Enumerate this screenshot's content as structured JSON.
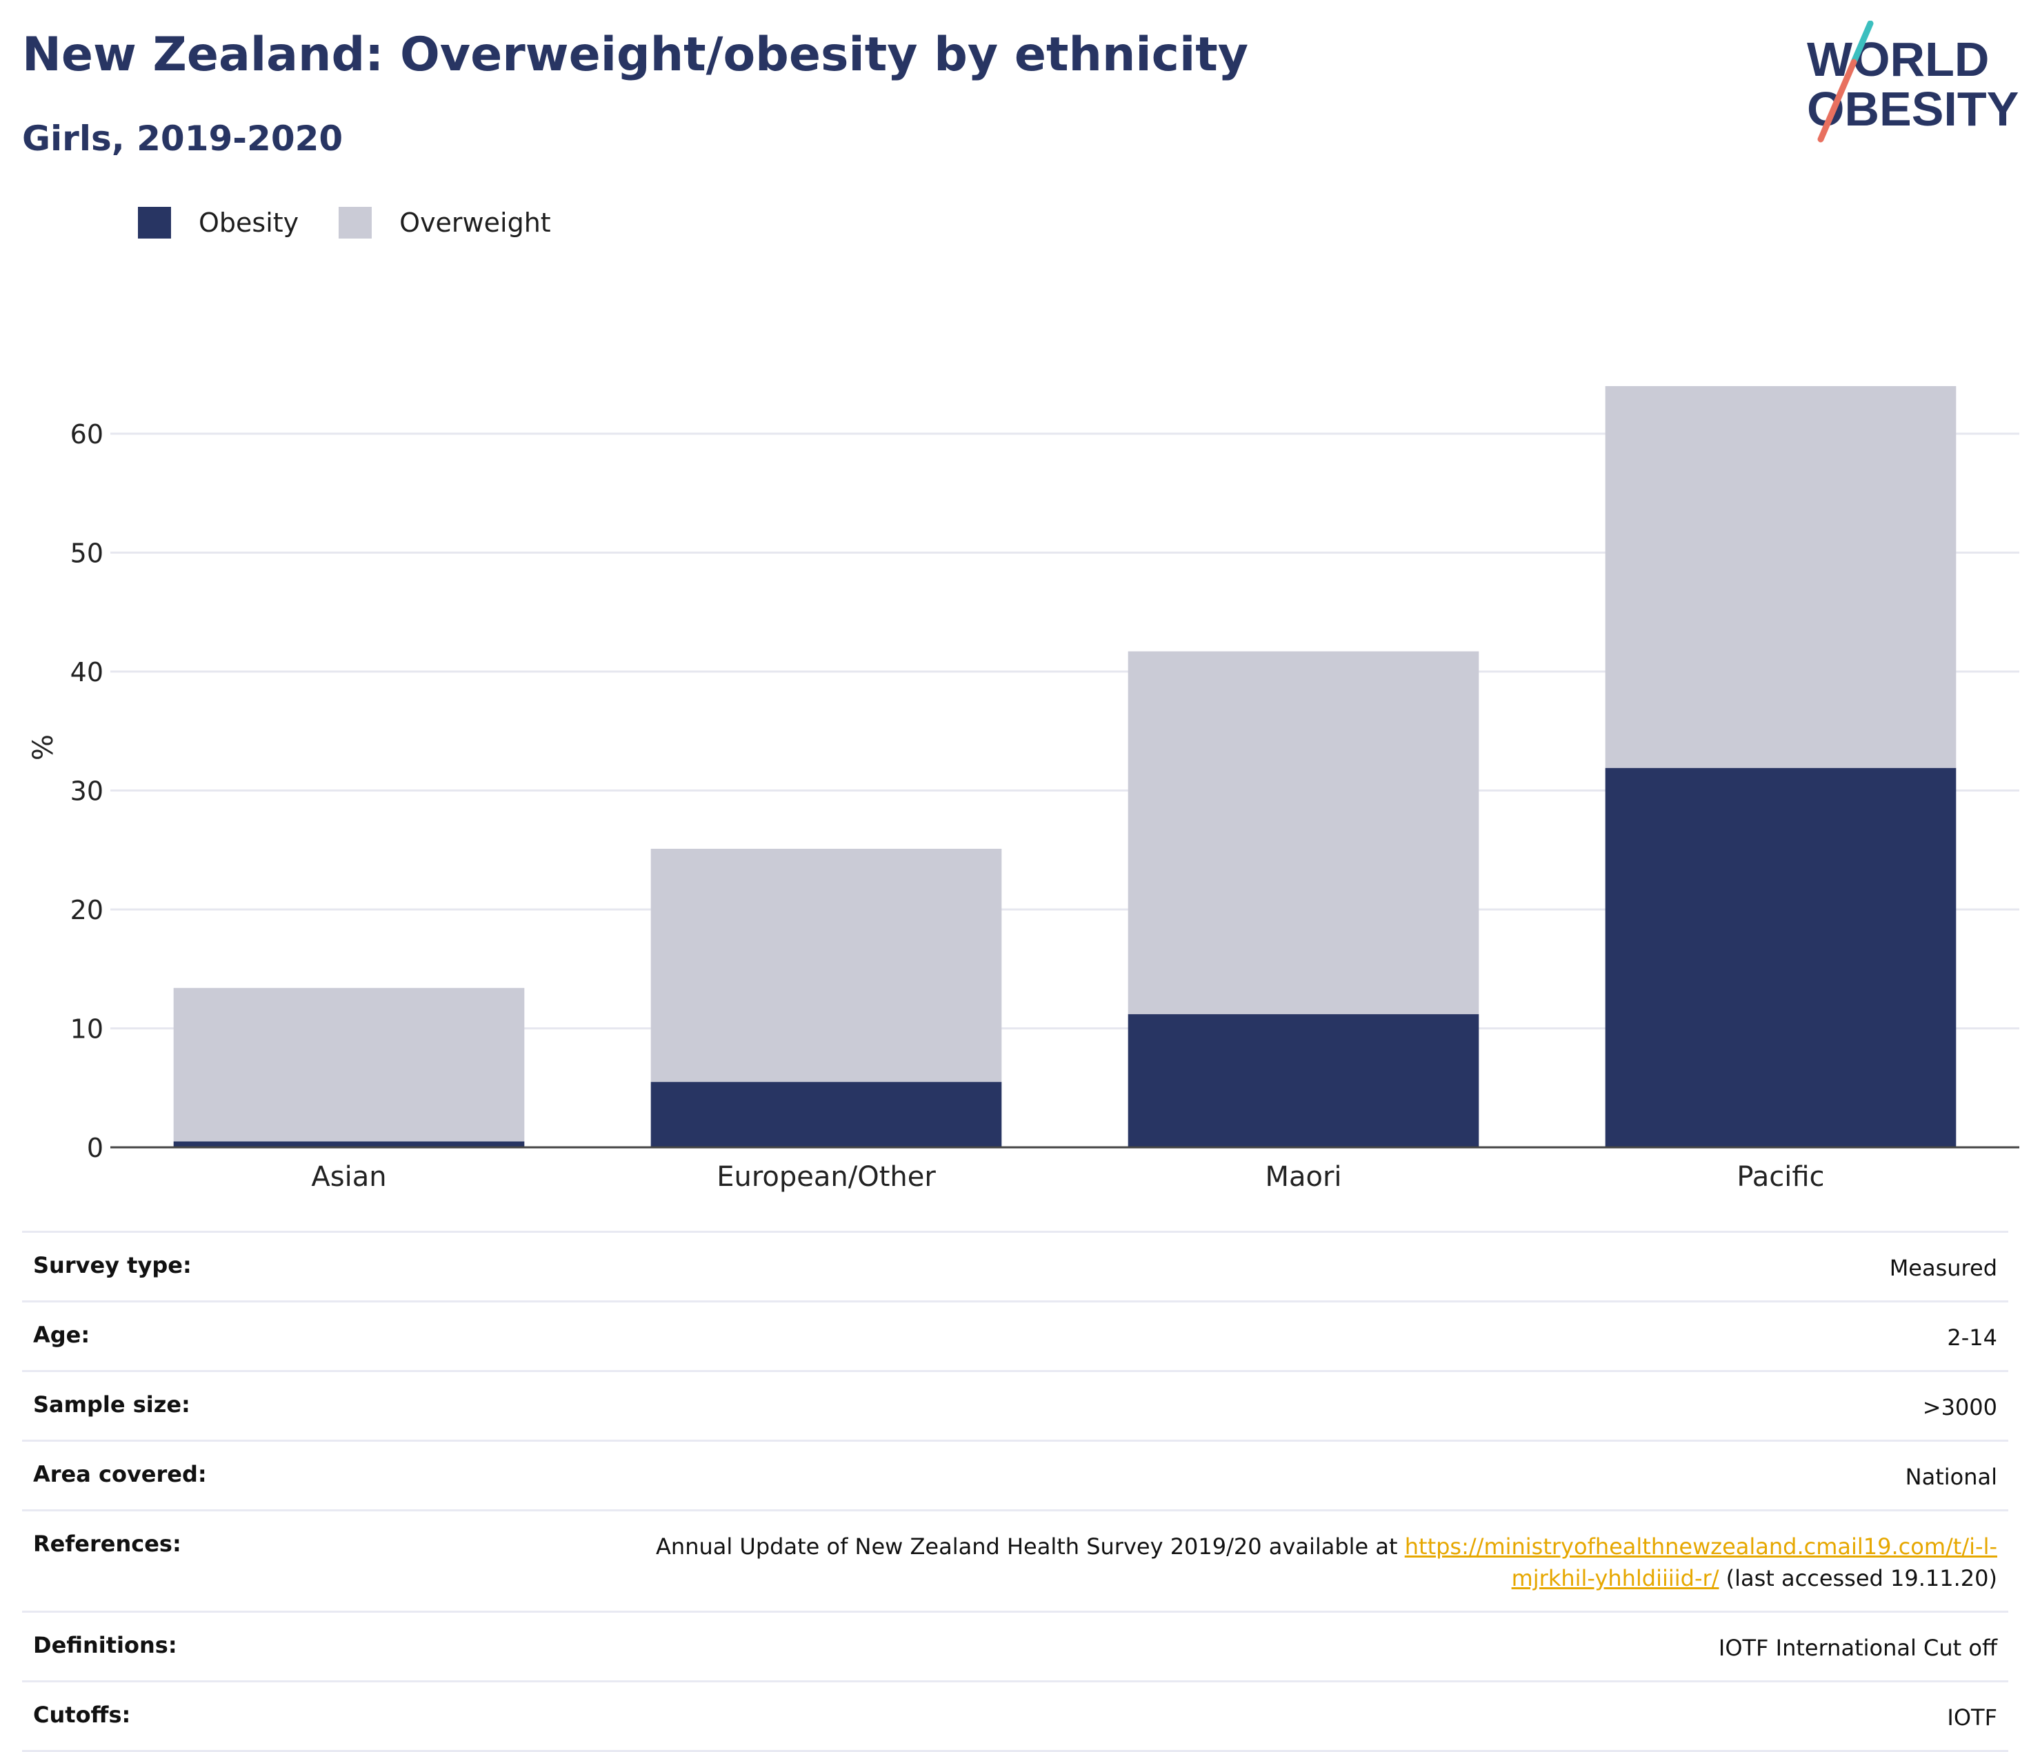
{
  "header": {
    "title": "New Zealand: Overweight/obesity by ethnicity",
    "subtitle": "Girls, 2019-2020"
  },
  "logo": {
    "line1": "WORLD",
    "line2": "OBESITY"
  },
  "colors": {
    "obesity": "#283563",
    "overweight": "#cacbd6",
    "grid": "#e6e7ef",
    "link": "#e6a700",
    "title": "#283563"
  },
  "legend": [
    {
      "label": "Obesity",
      "color": "#283563"
    },
    {
      "label": "Overweight",
      "color": "#cacbd6"
    }
  ],
  "chart_data": {
    "type": "bar",
    "stacked": true,
    "categories": [
      "Asian",
      "European/Other",
      "Maori",
      "Pacific"
    ],
    "series": [
      {
        "name": "Obesity",
        "values": [
          0.5,
          5.5,
          11.2,
          31.9
        ]
      },
      {
        "name": "Overweight",
        "values": [
          12.9,
          19.6,
          30.5,
          32.1
        ]
      }
    ],
    "ylabel": "%",
    "ylim": [
      0,
      70
    ],
    "yticks": [
      0,
      10,
      20,
      30,
      40,
      50,
      60
    ],
    "grid": true,
    "legend_position": "top-left"
  },
  "table": {
    "rows": [
      {
        "label": "Survey type:",
        "value": "Measured"
      },
      {
        "label": "Age:",
        "value": "2-14"
      },
      {
        "label": "Sample size:",
        "value": ">3000"
      },
      {
        "label": "Area covered:",
        "value": "National"
      },
      {
        "label": "References:",
        "value_prefix": "Annual Update of New Zealand Health Survey 2019/20 available at ",
        "link": "https://ministryofhealthnewzealand.cmail19.com/t/i-l-mjrkhil-yhhldiiiid-r/",
        "value_suffix": " (last accessed 19.11.20)"
      },
      {
        "label": "Definitions:",
        "value": "IOTF International Cut off"
      },
      {
        "label": "Cutoffs:",
        "value": "IOTF"
      }
    ]
  }
}
